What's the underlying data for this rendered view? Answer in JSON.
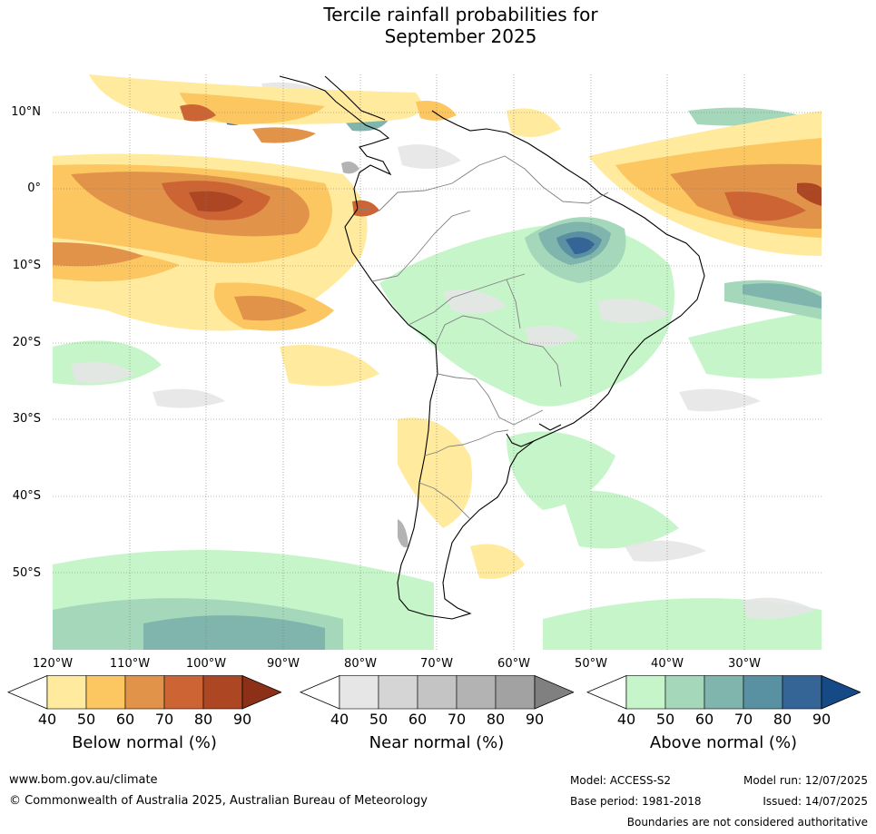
{
  "title": {
    "line1": "Tercile rainfall probabilities for",
    "line2": "September 2025"
  },
  "map": {
    "lat_ticks": [
      "10°N",
      "0°",
      "10°S",
      "20°S",
      "30°S",
      "40°S",
      "50°S"
    ],
    "lon_ticks": [
      "120°W",
      "110°W",
      "100°W",
      "90°W",
      "80°W",
      "70°W",
      "60°W",
      "50°W",
      "40°W",
      "30°W"
    ],
    "lat_range": [
      -60,
      15
    ],
    "lon_range": [
      -120,
      -20
    ]
  },
  "colorbars": [
    {
      "title": "Below normal (%)",
      "ticks": [
        "40",
        "50",
        "60",
        "70",
        "80",
        "90"
      ],
      "colors": [
        "#ffffff",
        "#ffea9e",
        "#fcc660",
        "#e1934a",
        "#cd6433",
        "#ad4623",
        "#8c3118"
      ]
    },
    {
      "title": "Near normal (%)",
      "ticks": [
        "40",
        "50",
        "60",
        "70",
        "80",
        "90"
      ],
      "colors": [
        "#ffffff",
        "#e6e6e6",
        "#d5d5d5",
        "#c4c4c4",
        "#b3b3b3",
        "#a2a2a2",
        "#808080"
      ]
    },
    {
      "title": "Above normal (%)",
      "ticks": [
        "40",
        "50",
        "60",
        "70",
        "80",
        "90"
      ],
      "colors": [
        "#ffffff",
        "#c6f5c9",
        "#a5d7bb",
        "#7fb5ad",
        "#5a91a2",
        "#356597",
        "#154a86"
      ]
    }
  ],
  "footer": {
    "url": "www.bom.gov.au/climate",
    "copyright": "© Commonwealth of Australia 2025, Australian Bureau of Meteorology",
    "model": "Model: ACCESS-S2",
    "model_run": "Model run: 12/07/2025",
    "base_period": "Base period: 1981-2018",
    "issued": "Issued: 14/07/2025",
    "disclaimer": "Boundaries are not considered authoritative"
  }
}
